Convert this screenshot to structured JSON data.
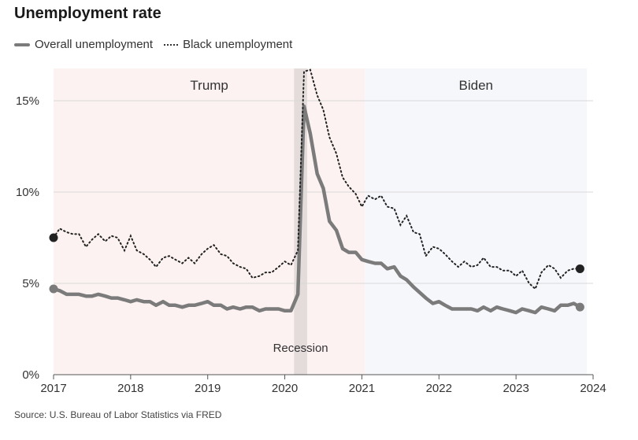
{
  "title": "Unemployment rate",
  "legend": {
    "overall": "Overall unemployment",
    "black": "Black unemployment"
  },
  "source": "Source: U.S. Bureau of Labor Statistics via FRED",
  "colors": {
    "overall": "#7b7b7b",
    "black": "#222222",
    "trump_bg": "#fcf2f1",
    "biden_bg": "#f6f7fb",
    "recession": "#e4dcdb",
    "grid": "#d9d9d9"
  },
  "chart_data": {
    "type": "line",
    "xlim": [
      2017,
      2024
    ],
    "ylim": [
      0,
      15
    ],
    "x_ticks": [
      "2017",
      "2018",
      "2019",
      "2020",
      "2021",
      "2022",
      "2023",
      "2024"
    ],
    "y_ticks": [
      "0%",
      "5%",
      "10%",
      "15%"
    ],
    "regions": [
      {
        "label": "Trump",
        "start": 2017.0,
        "end": 2021.04
      },
      {
        "label": "Biden",
        "start": 2021.04,
        "end": 2023.92
      }
    ],
    "recession": {
      "label": "Recession",
      "start": 2020.12,
      "end": 2020.29
    },
    "series": [
      {
        "name": "Overall unemployment",
        "style": "solid",
        "x": [
          2017.0,
          2017.08,
          2017.17,
          2017.25,
          2017.33,
          2017.42,
          2017.5,
          2017.58,
          2017.67,
          2017.75,
          2017.83,
          2017.92,
          2018.0,
          2018.08,
          2018.17,
          2018.25,
          2018.33,
          2018.42,
          2018.5,
          2018.58,
          2018.67,
          2018.75,
          2018.83,
          2018.92,
          2019.0,
          2019.08,
          2019.17,
          2019.25,
          2019.33,
          2019.42,
          2019.5,
          2019.58,
          2019.67,
          2019.75,
          2019.83,
          2019.92,
          2020.0,
          2020.08,
          2020.17,
          2020.25,
          2020.33,
          2020.42,
          2020.5,
          2020.58,
          2020.67,
          2020.75,
          2020.83,
          2020.92,
          2021.0,
          2021.08,
          2021.17,
          2021.25,
          2021.33,
          2021.42,
          2021.5,
          2021.58,
          2021.67,
          2021.75,
          2021.83,
          2021.92,
          2022.0,
          2022.08,
          2022.17,
          2022.25,
          2022.33,
          2022.42,
          2022.5,
          2022.58,
          2022.67,
          2022.75,
          2022.83,
          2022.92,
          2023.0,
          2023.08,
          2023.17,
          2023.25,
          2023.33,
          2023.42,
          2023.5,
          2023.58,
          2023.67,
          2023.75,
          2023.83
        ],
        "values": [
          4.7,
          4.6,
          4.4,
          4.4,
          4.4,
          4.3,
          4.3,
          4.4,
          4.3,
          4.2,
          4.2,
          4.1,
          4.0,
          4.1,
          4.0,
          4.0,
          3.8,
          4.0,
          3.8,
          3.8,
          3.7,
          3.8,
          3.8,
          3.9,
          4.0,
          3.8,
          3.8,
          3.6,
          3.7,
          3.6,
          3.7,
          3.7,
          3.5,
          3.6,
          3.6,
          3.6,
          3.5,
          3.5,
          4.4,
          14.7,
          13.2,
          11.0,
          10.2,
          8.4,
          7.9,
          6.9,
          6.7,
          6.7,
          6.3,
          6.2,
          6.1,
          6.1,
          5.8,
          5.9,
          5.4,
          5.2,
          4.8,
          4.5,
          4.2,
          3.9,
          4.0,
          3.8,
          3.6,
          3.6,
          3.6,
          3.6,
          3.5,
          3.7,
          3.5,
          3.7,
          3.6,
          3.5,
          3.4,
          3.6,
          3.5,
          3.4,
          3.7,
          3.6,
          3.5,
          3.8,
          3.8,
          3.9,
          3.7
        ]
      },
      {
        "name": "Black unemployment",
        "style": "dotted",
        "x": [
          2017.0,
          2017.08,
          2017.17,
          2017.25,
          2017.33,
          2017.42,
          2017.5,
          2017.58,
          2017.67,
          2017.75,
          2017.83,
          2017.92,
          2018.0,
          2018.08,
          2018.17,
          2018.25,
          2018.33,
          2018.42,
          2018.5,
          2018.58,
          2018.67,
          2018.75,
          2018.83,
          2018.92,
          2019.0,
          2019.08,
          2019.17,
          2019.25,
          2019.33,
          2019.42,
          2019.5,
          2019.58,
          2019.67,
          2019.75,
          2019.83,
          2019.92,
          2020.0,
          2020.08,
          2020.17,
          2020.25,
          2020.33,
          2020.42,
          2020.5,
          2020.58,
          2020.67,
          2020.75,
          2020.83,
          2020.92,
          2021.0,
          2021.08,
          2021.17,
          2021.25,
          2021.33,
          2021.42,
          2021.5,
          2021.58,
          2021.67,
          2021.75,
          2021.83,
          2021.92,
          2022.0,
          2022.08,
          2022.17,
          2022.25,
          2022.33,
          2022.42,
          2022.5,
          2022.58,
          2022.67,
          2022.75,
          2022.83,
          2022.92,
          2023.0,
          2023.08,
          2023.17,
          2023.25,
          2023.33,
          2023.42,
          2023.5,
          2023.58,
          2023.67,
          2023.75,
          2023.83
        ],
        "values": [
          7.5,
          8.0,
          7.8,
          7.7,
          7.7,
          7.0,
          7.4,
          7.7,
          7.3,
          7.6,
          7.5,
          6.8,
          7.6,
          6.8,
          6.6,
          6.3,
          5.9,
          6.4,
          6.5,
          6.3,
          6.1,
          6.4,
          6.1,
          6.6,
          6.9,
          7.1,
          6.6,
          6.5,
          6.1,
          5.9,
          5.8,
          5.3,
          5.4,
          5.6,
          5.6,
          5.9,
          6.2,
          6.0,
          6.8,
          16.6,
          16.7,
          15.3,
          14.5,
          13.0,
          12.1,
          10.8,
          10.3,
          9.9,
          9.2,
          9.8,
          9.6,
          9.8,
          9.2,
          9.1,
          8.2,
          8.7,
          7.8,
          7.7,
          6.5,
          7.0,
          6.9,
          6.6,
          6.2,
          5.9,
          6.2,
          5.9,
          6.0,
          6.4,
          5.9,
          5.9,
          5.7,
          5.7,
          5.4,
          5.7,
          5.0,
          4.7,
          5.6,
          6.0,
          5.8,
          5.3,
          5.7,
          5.8,
          5.8
        ]
      }
    ]
  }
}
